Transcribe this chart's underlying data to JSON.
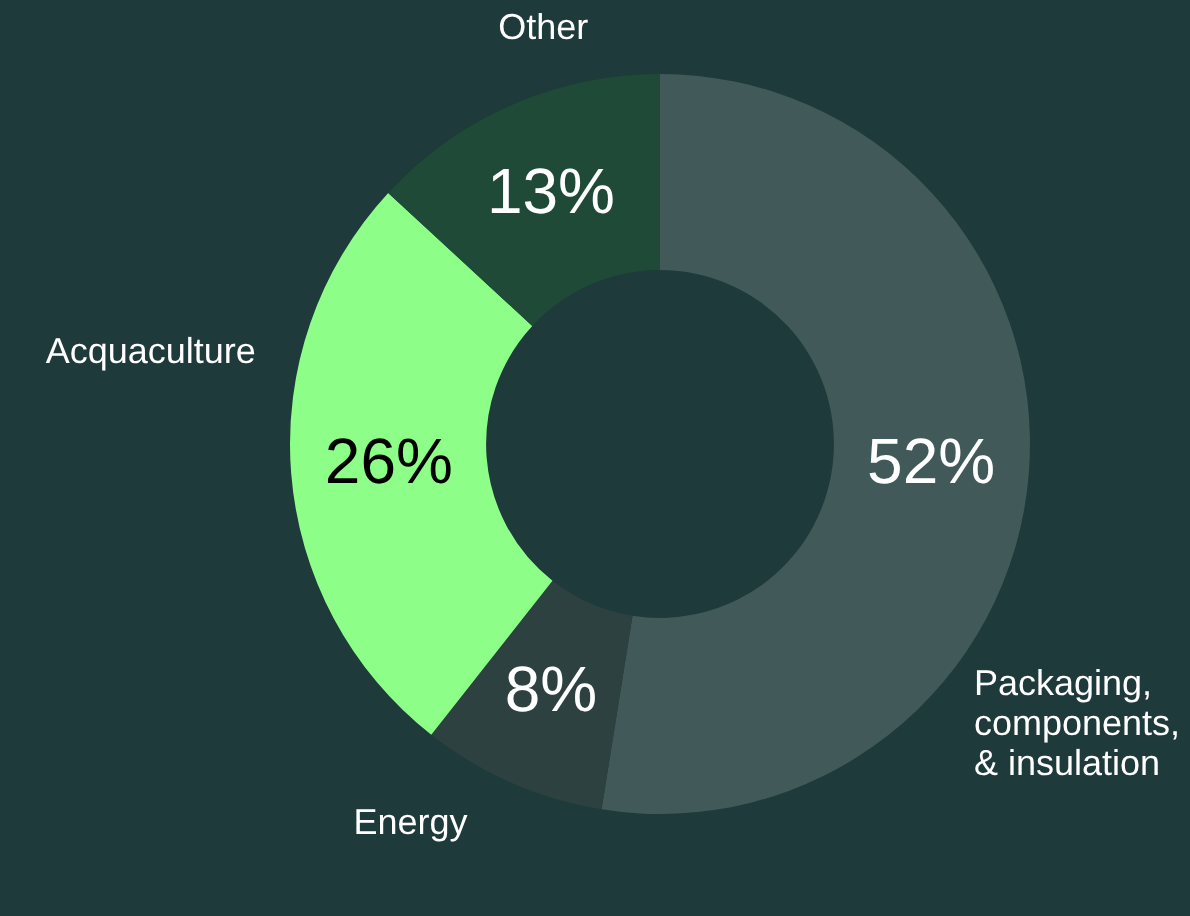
{
  "chart_data": {
    "type": "donut",
    "categories": [
      "Packaging, components, & insulation",
      "Energy",
      "Acquaculture",
      "Other"
    ],
    "values": [
      52,
      8,
      26,
      13
    ],
    "value_labels": [
      "52%",
      "8%",
      "26%",
      "13%"
    ],
    "colors": [
      "#415a59",
      "#2d4240",
      "#8dff88",
      "#1e4a37"
    ],
    "legend": false
  }
}
